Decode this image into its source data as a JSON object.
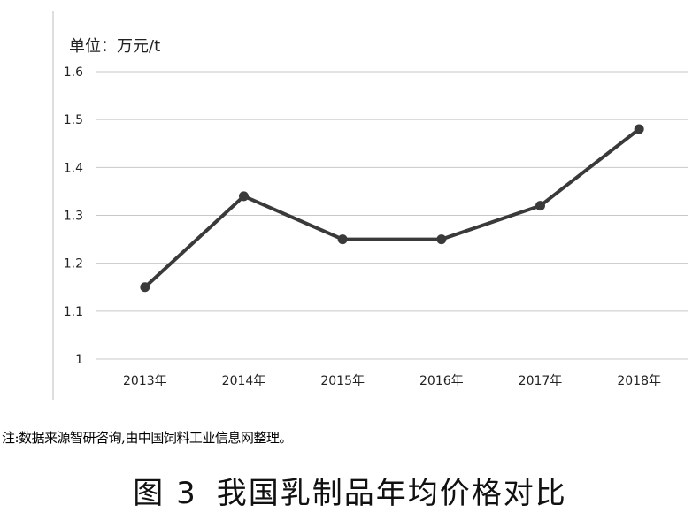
{
  "chart_data": {
    "type": "line",
    "unit_label": "单位：万元/t",
    "categories": [
      "2013年",
      "2014年",
      "2015年",
      "2016年",
      "2017年",
      "2018年"
    ],
    "series": [
      {
        "values": [
          1.15,
          1.34,
          1.25,
          1.25,
          1.32,
          1.48
        ]
      }
    ],
    "ylim": [
      1,
      1.6
    ],
    "yticks": [
      "1",
      "1.1",
      "1.2",
      "1.3",
      "1.4",
      "1.5",
      "1.6"
    ],
    "grid": true,
    "line_color": "#3a3a3a",
    "grid_color": "#c8c8c8"
  },
  "note": "注:数据来源智研咨询,由中国饲料工业信息网整理。",
  "caption": {
    "number": "图 3",
    "title": "我国乳制品年均价格对比"
  }
}
